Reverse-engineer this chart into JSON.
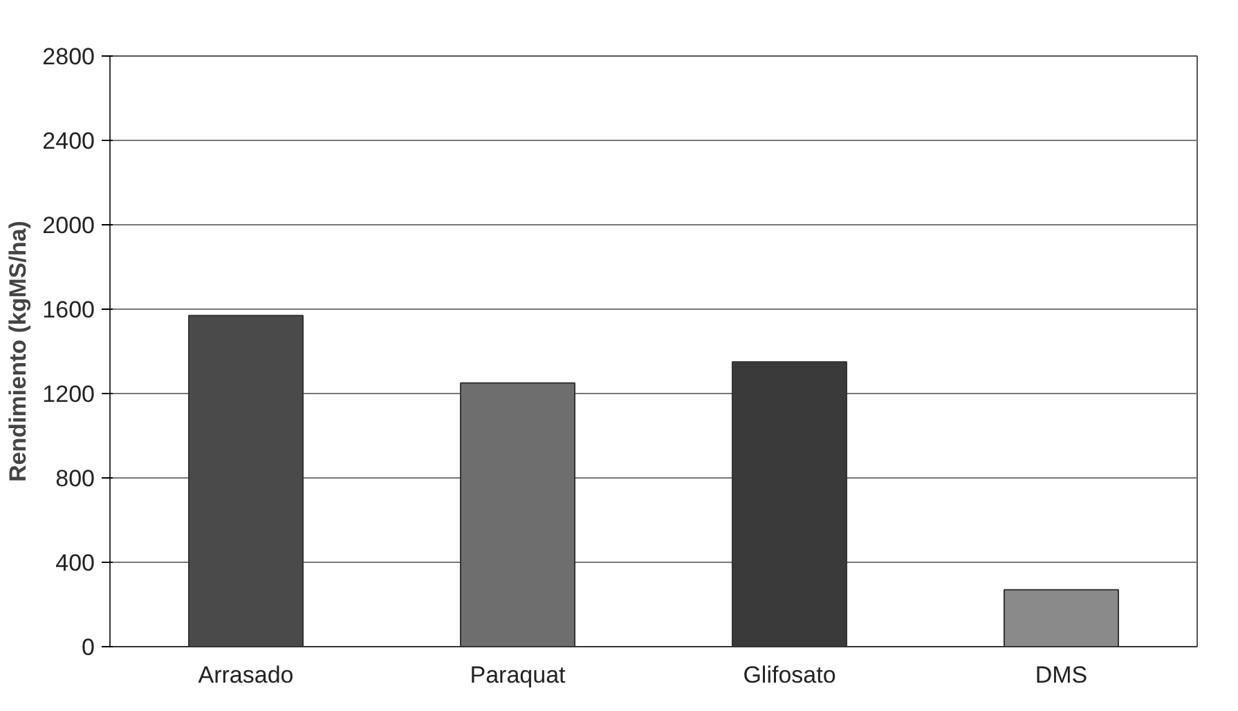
{
  "chart_data": {
    "type": "bar",
    "ylabel": "Rendimiento (kgMS/ha)",
    "categories": [
      "Arrasado",
      "Paraquat",
      "Glifosato",
      "DMS"
    ],
    "values": [
      1570,
      1250,
      1350,
      270
    ],
    "colors": [
      "#4a4a4a",
      "#6e6e6e",
      "#3a3a3a",
      "#8a8a8a"
    ],
    "ylim": [
      0,
      2800
    ],
    "yticks": [
      0,
      400,
      800,
      1200,
      1600,
      2000,
      2400,
      2800
    ],
    "grid": "y"
  }
}
